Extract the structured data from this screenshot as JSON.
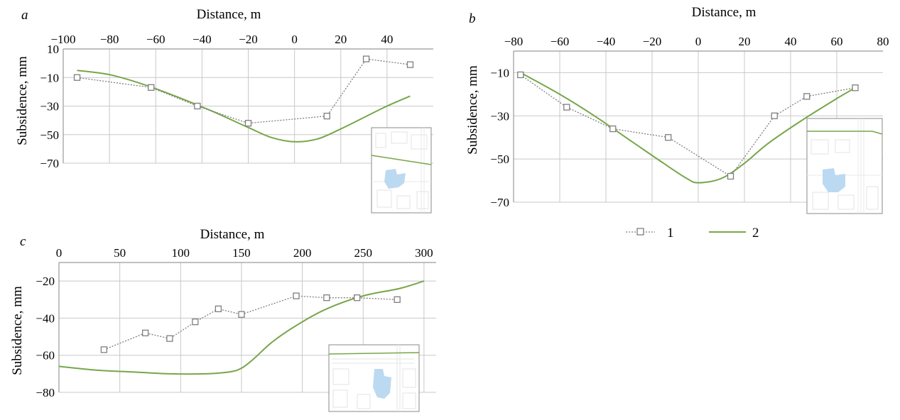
{
  "chart_data": [
    {
      "panel": "a",
      "type": "line",
      "xlabel": "Distance, m",
      "ylabel": "Subsidence, mm",
      "xlim": [
        -100,
        60
      ],
      "ylim": [
        -70,
        10
      ],
      "xticks": [
        -100,
        -80,
        -60,
        -40,
        -20,
        0,
        20,
        40
      ],
      "xtick_labels": [
        "−100",
        "−80",
        "−60",
        "−40",
        "−20",
        "0",
        "20",
        "40"
      ],
      "yticks": [
        10,
        -10,
        -30,
        -50,
        -70
      ],
      "ytick_labels": [
        "10",
        "−10",
        "−30",
        "−50",
        "−70"
      ],
      "x_axis_position": "top",
      "grid": true,
      "series": [
        {
          "legend_key": "1",
          "marker": "square",
          "line_style": "dotted",
          "color": "#7f7f7f",
          "x": [
            -94,
            -62,
            -42,
            -20,
            14,
            31,
            50
          ],
          "y": [
            -10,
            -17,
            -30,
            -42,
            -37,
            3,
            -1
          ]
        },
        {
          "legend_key": "2",
          "line_style": "solid",
          "color": "#77a64a",
          "x": [
            -94,
            -80,
            -65,
            -50,
            -35,
            -20,
            -10,
            0,
            10,
            20,
            30,
            40,
            50
          ],
          "y": [
            -5,
            -8,
            -15,
            -24,
            -34,
            -45,
            -52,
            -55,
            -53,
            -46,
            -38,
            -30,
            -23
          ]
        }
      ]
    },
    {
      "panel": "b",
      "type": "line",
      "xlabel": "Distance, m",
      "ylabel": "Subsidence, mm",
      "xlim": [
        -80,
        80
      ],
      "ylim": [
        -70,
        0
      ],
      "xticks": [
        -80,
        -60,
        -40,
        -20,
        0,
        20,
        40,
        60,
        80
      ],
      "xtick_labels": [
        "−80",
        "−60",
        "−40",
        "−20",
        "0",
        "20",
        "40",
        "60",
        "80"
      ],
      "yticks": [
        -10,
        -30,
        -50,
        -70
      ],
      "ytick_labels": [
        "−10",
        "−30",
        "−50",
        "−70"
      ],
      "x_axis_position": "top",
      "grid": true,
      "series": [
        {
          "legend_key": "1",
          "marker": "square",
          "line_style": "dotted",
          "color": "#7f7f7f",
          "x": [
            -77,
            -57,
            -37,
            -13,
            14,
            33,
            47,
            68
          ],
          "y": [
            -11,
            -26,
            -36,
            -40,
            -58,
            -30,
            -21,
            -17
          ]
        },
        {
          "legend_key": "2",
          "line_style": "solid",
          "color": "#77a64a",
          "x": [
            -77,
            -60,
            -45,
            -30,
            -15,
            -5,
            0,
            10,
            20,
            30,
            45,
            60,
            68
          ],
          "y": [
            -10,
            -20,
            -30,
            -41,
            -52,
            -59,
            -61,
            -59,
            -52,
            -43,
            -32,
            -22,
            -17
          ]
        }
      ],
      "legend": {
        "placement": "bottom-center",
        "entries": [
          "1",
          "2"
        ]
      }
    },
    {
      "panel": "c",
      "type": "line",
      "xlabel": "Distance, m",
      "ylabel": "Subsidence, mm",
      "xlim": [
        0,
        310
      ],
      "ylim": [
        -80,
        -10
      ],
      "xticks": [
        0,
        50,
        100,
        150,
        200,
        250,
        300
      ],
      "xtick_labels": [
        "0",
        "50",
        "100",
        "150",
        "200",
        "250",
        "300"
      ],
      "yticks": [
        -20,
        -40,
        -60,
        -80
      ],
      "ytick_labels": [
        "−20",
        "−40",
        "−60",
        "−80"
      ],
      "x_axis_position": "top",
      "grid": true,
      "series": [
        {
          "legend_key": "1",
          "marker": "square",
          "line_style": "dotted",
          "color": "#7f7f7f",
          "x": [
            37,
            71,
            91,
            112,
            131,
            150,
            195,
            220,
            245,
            278
          ],
          "y": [
            -57,
            -48,
            -51,
            -42,
            -35,
            -38,
            -28,
            -29,
            -29,
            -30
          ]
        },
        {
          "legend_key": "2",
          "line_style": "solid",
          "color": "#77a64a",
          "x": [
            0,
            30,
            60,
            90,
            120,
            140,
            150,
            160,
            175,
            195,
            220,
            250,
            280,
            300
          ],
          "y": [
            -66,
            -68,
            -69,
            -70,
            -70,
            -69,
            -67,
            -62,
            -53,
            -44,
            -35,
            -28,
            -24,
            -20
          ]
        }
      ]
    }
  ],
  "colors": {
    "grid": "#c8c8c8",
    "axis_frame": "#9a9a9a",
    "inset_water": "#bcd9f2",
    "inset_frame": "#8a8a8a"
  }
}
